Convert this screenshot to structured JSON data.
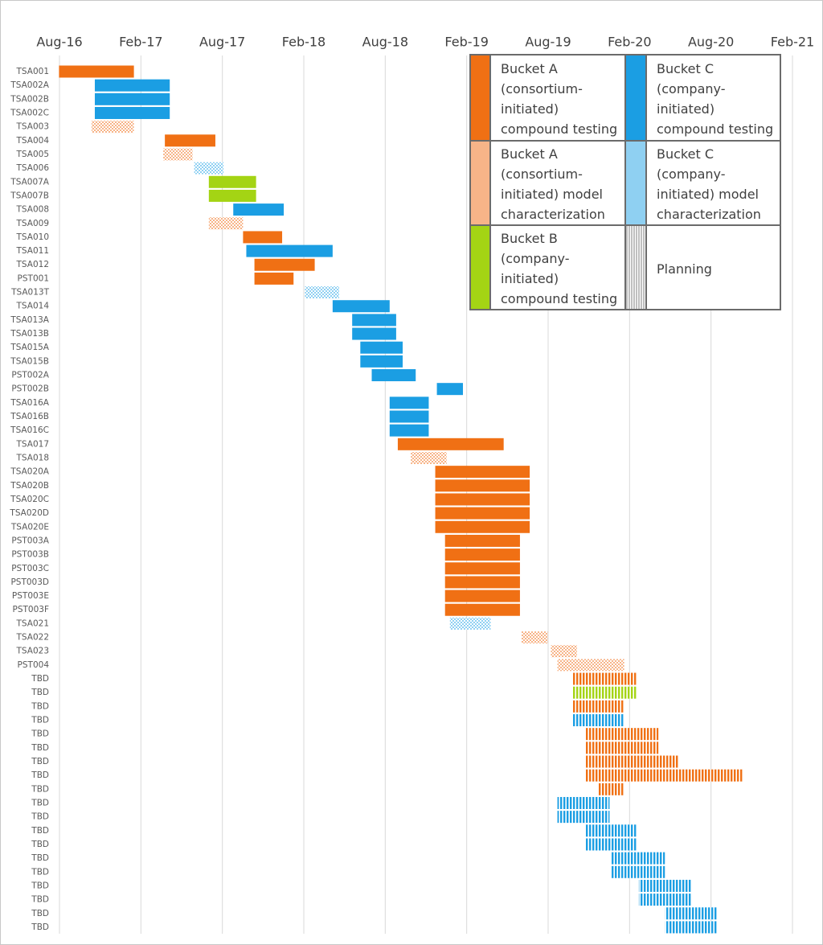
{
  "chart_data": {
    "type": "gantt",
    "xlim": [
      2016.583,
      2021.083
    ],
    "xticks": [
      {
        "value": 2016.583,
        "label": "Aug-16"
      },
      {
        "value": 2017.083,
        "label": "Feb-17"
      },
      {
        "value": 2017.583,
        "label": "Aug-17"
      },
      {
        "value": 2018.083,
        "label": "Feb-18"
      },
      {
        "value": 2018.583,
        "label": "Aug-18"
      },
      {
        "value": 2019.083,
        "label": "Feb-19"
      },
      {
        "value": 2019.583,
        "label": "Aug-19"
      },
      {
        "value": 2020.083,
        "label": "Feb-20"
      },
      {
        "value": 2020.583,
        "label": "Aug-20"
      },
      {
        "value": 2021.083,
        "label": "Feb-21"
      }
    ],
    "grid": true,
    "series": [
      {
        "name": "Bucket A (consortium-initiated) compound testing",
        "color": "#f07014",
        "style": "solid"
      },
      {
        "name": "Bucket A (consortium-initiated) model characterization",
        "color": "#f7b488",
        "style": "dots"
      },
      {
        "name": "Bucket B (company-initiated) compound testing",
        "color": "#a4d414",
        "style": "solid"
      },
      {
        "name": "Bucket C (company-initiated) compound testing",
        "color": "#1b9ee3",
        "style": "solid"
      },
      {
        "name": "Bucket C (company-initiated) model characterization",
        "color": "#8fd0f2",
        "style": "dots"
      },
      {
        "name": "Planning",
        "color": "#bfbfbf",
        "style": "stripes"
      }
    ],
    "tasks": [
      {
        "label": "TSA001",
        "start": 2016.58,
        "end": 2017.04,
        "series": 0
      },
      {
        "label": "TSA002A",
        "start": 2016.8,
        "end": 2017.26,
        "series": 3
      },
      {
        "label": "TSA002B",
        "start": 2016.8,
        "end": 2017.26,
        "series": 3
      },
      {
        "label": "TSA002C",
        "start": 2016.8,
        "end": 2017.26,
        "series": 3
      },
      {
        "label": "TSA003",
        "start": 2016.78,
        "end": 2017.04,
        "series": 1
      },
      {
        "label": "TSA004",
        "start": 2017.23,
        "end": 2017.54,
        "series": 0
      },
      {
        "label": "TSA005",
        "start": 2017.22,
        "end": 2017.4,
        "series": 1
      },
      {
        "label": "TSA006",
        "start": 2017.41,
        "end": 2017.59,
        "series": 4
      },
      {
        "label": "TSA007A",
        "start": 2017.5,
        "end": 2017.79,
        "series": 2
      },
      {
        "label": "TSA007B",
        "start": 2017.5,
        "end": 2017.79,
        "series": 2
      },
      {
        "label": "TSA008",
        "start": 2017.65,
        "end": 2017.96,
        "series": 3
      },
      {
        "label": "TSA009",
        "start": 2017.5,
        "end": 2017.71,
        "series": 1
      },
      {
        "label": "TSA010",
        "start": 2017.71,
        "end": 2017.95,
        "series": 0
      },
      {
        "label": "TSA011",
        "start": 2017.73,
        "end": 2018.26,
        "series": 3
      },
      {
        "label": "TSA012",
        "start": 2017.78,
        "end": 2018.15,
        "series": 0
      },
      {
        "label": "PST001",
        "start": 2017.78,
        "end": 2018.02,
        "series": 0
      },
      {
        "label": "TSA013T",
        "start": 2018.09,
        "end": 2018.3,
        "series": 4
      },
      {
        "label": "TSA014",
        "start": 2018.26,
        "end": 2018.61,
        "series": 3
      },
      {
        "label": "TSA013A",
        "start": 2018.38,
        "end": 2018.65,
        "series": 3
      },
      {
        "label": "TSA013B",
        "start": 2018.38,
        "end": 2018.65,
        "series": 3
      },
      {
        "label": "TSA015A",
        "start": 2018.43,
        "end": 2018.69,
        "series": 3
      },
      {
        "label": "TSA015B",
        "start": 2018.43,
        "end": 2018.69,
        "series": 3
      },
      {
        "label": "PST002A",
        "start": 2018.5,
        "end": 2018.77,
        "series": 3
      },
      {
        "label": "PST002B",
        "start": 2018.9,
        "end": 2019.06,
        "series": 3
      },
      {
        "label": "TSA016A",
        "start": 2018.61,
        "end": 2018.85,
        "series": 3
      },
      {
        "label": "TSA016B",
        "start": 2018.61,
        "end": 2018.85,
        "series": 3
      },
      {
        "label": "TSA016C",
        "start": 2018.61,
        "end": 2018.85,
        "series": 3
      },
      {
        "label": "TSA017",
        "start": 2018.66,
        "end": 2019.31,
        "series": 0
      },
      {
        "label": "TSA018",
        "start": 2018.74,
        "end": 2018.96,
        "series": 1
      },
      {
        "label": "TSA020A",
        "start": 2018.89,
        "end": 2019.47,
        "series": 0
      },
      {
        "label": "TSA020B",
        "start": 2018.89,
        "end": 2019.47,
        "series": 0
      },
      {
        "label": "TSA020C",
        "start": 2018.89,
        "end": 2019.47,
        "series": 0
      },
      {
        "label": "TSA020D",
        "start": 2018.89,
        "end": 2019.47,
        "series": 0
      },
      {
        "label": "TSA020E",
        "start": 2018.89,
        "end": 2019.47,
        "series": 0
      },
      {
        "label": "PST003A",
        "start": 2018.95,
        "end": 2019.41,
        "series": 0
      },
      {
        "label": "PST003B",
        "start": 2018.95,
        "end": 2019.41,
        "series": 0
      },
      {
        "label": "PST003C",
        "start": 2018.95,
        "end": 2019.41,
        "series": 0
      },
      {
        "label": "PST003D",
        "start": 2018.95,
        "end": 2019.41,
        "series": 0
      },
      {
        "label": "PST003E",
        "start": 2018.95,
        "end": 2019.41,
        "series": 0
      },
      {
        "label": "PST003F",
        "start": 2018.95,
        "end": 2019.41,
        "series": 0
      },
      {
        "label": "TSA021",
        "start": 2018.98,
        "end": 2019.23,
        "series": 4
      },
      {
        "label": "TSA022",
        "start": 2019.42,
        "end": 2019.58,
        "series": 1
      },
      {
        "label": "TSA023",
        "start": 2019.6,
        "end": 2019.76,
        "series": 1
      },
      {
        "label": "PST004",
        "start": 2019.64,
        "end": 2020.05,
        "series": 1
      },
      {
        "label": "TBD",
        "start": 2019.73,
        "end": 2020.13,
        "series": 0,
        "planning": true
      },
      {
        "label": "TBD",
        "start": 2019.73,
        "end": 2020.13,
        "series": 2,
        "planning": true
      },
      {
        "label": "TBD",
        "start": 2019.73,
        "end": 2020.05,
        "series": 0,
        "planning": true
      },
      {
        "label": "TBD",
        "start": 2019.73,
        "end": 2020.05,
        "series": 3,
        "planning": true
      },
      {
        "label": "TBD",
        "start": 2019.81,
        "end": 2020.26,
        "series": 0,
        "planning": true
      },
      {
        "label": "TBD",
        "start": 2019.81,
        "end": 2020.26,
        "series": 0,
        "planning": true
      },
      {
        "label": "TBD",
        "start": 2019.81,
        "end": 2020.38,
        "series": 0,
        "planning": true
      },
      {
        "label": "TBD",
        "start": 2019.81,
        "end": 2020.78,
        "series": 0,
        "planning": true
      },
      {
        "label": "TBD",
        "start": 2019.89,
        "end": 2020.05,
        "series": 0,
        "planning": true
      },
      {
        "label": "TBD",
        "start": 2019.64,
        "end": 2019.96,
        "series": 3,
        "planning": true
      },
      {
        "label": "TBD",
        "start": 2019.64,
        "end": 2019.96,
        "series": 3,
        "planning": true
      },
      {
        "label": "TBD",
        "start": 2019.81,
        "end": 2020.13,
        "series": 3,
        "planning": true
      },
      {
        "label": "TBD",
        "start": 2019.81,
        "end": 2020.13,
        "series": 3,
        "planning": true
      },
      {
        "label": "TBD",
        "start": 2019.97,
        "end": 2020.3,
        "series": 3,
        "planning": true
      },
      {
        "label": "TBD",
        "start": 2019.97,
        "end": 2020.3,
        "series": 3,
        "planning": true
      },
      {
        "label": "TBD",
        "start": 2020.14,
        "end": 2020.46,
        "series": 3,
        "planning": true
      },
      {
        "label": "TBD",
        "start": 2020.14,
        "end": 2020.46,
        "series": 3,
        "planning": true
      },
      {
        "label": "TBD",
        "start": 2020.3,
        "end": 2020.62,
        "series": 3,
        "planning": true
      },
      {
        "label": "TBD",
        "start": 2020.3,
        "end": 2020.62,
        "series": 3,
        "planning": true
      }
    ]
  }
}
